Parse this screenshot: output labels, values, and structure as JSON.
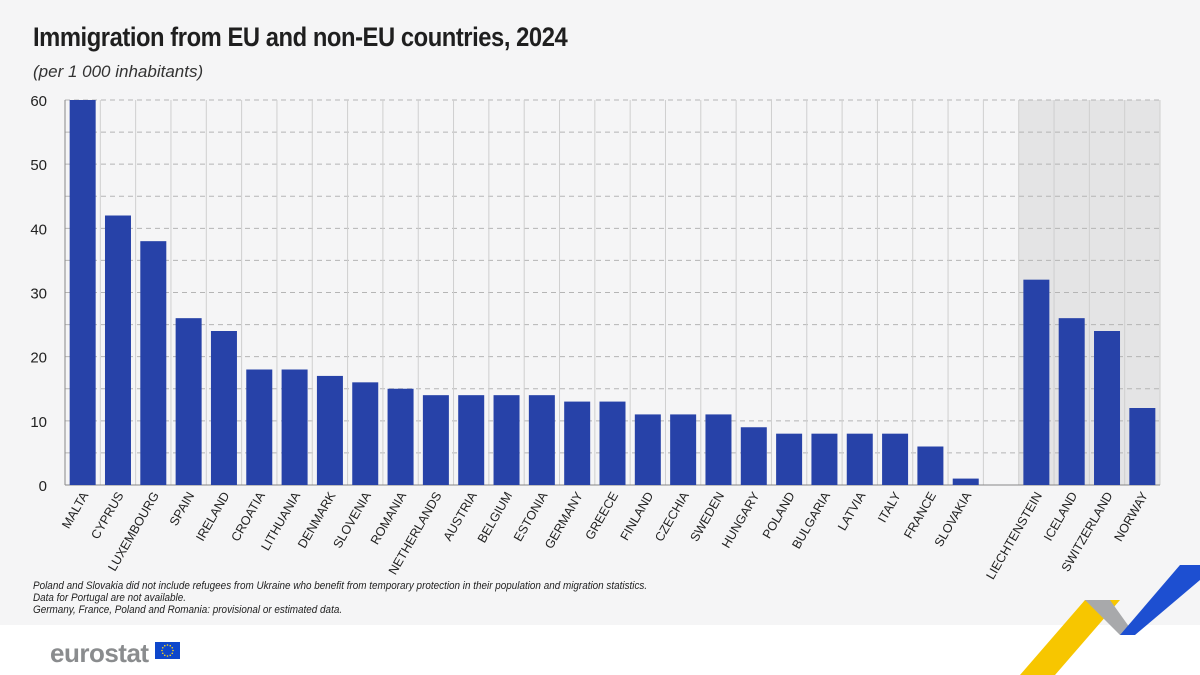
{
  "chart_data": {
    "type": "bar",
    "title": "Immigration from EU and non-EU countries, 2024",
    "subtitle": "(per 1 000 inhabitants)",
    "categories": [
      "MALTA",
      "CYPRUS",
      "LUXEMBOURG",
      "SPAIN",
      "IRELAND",
      "CROATIA",
      "LITHUANIA",
      "DENMARK",
      "SLOVENIA",
      "ROMANIA",
      "NETHERLANDS",
      "AUSTRIA",
      "BELGIUM",
      "ESTONIA",
      "GERMANY",
      "GREECE",
      "FINLAND",
      "CZECHIA",
      "SWEDEN",
      "HUNGARY",
      "POLAND",
      "BULGARIA",
      "LATVIA",
      "ITALY",
      "FRANCE",
      "SLOVAKIA",
      "",
      "LIECHTENSTEIN",
      "ICELAND",
      "SWITZERLAND",
      "NORWAY"
    ],
    "values": [
      60,
      42,
      38,
      26,
      24,
      18,
      18,
      17,
      16,
      15,
      14,
      14,
      14,
      14,
      13,
      13,
      11,
      11,
      11,
      9,
      8,
      8,
      8,
      8,
      6,
      1,
      null,
      32,
      26,
      24,
      12
    ],
    "non_eu_highlighted": [
      "LIECHTENSTEIN",
      "ICELAND",
      "SWITZERLAND",
      "NORWAY"
    ],
    "ylim": [
      0,
      60
    ],
    "yticks": [
      0,
      10,
      20,
      30,
      40,
      50,
      60
    ],
    "grid": true,
    "bar_color": "#2742a8",
    "highlight_bg": "#e4e4e5"
  },
  "notes": [
    "Poland and Slovakia did not include refugees from Ukraine who benefit from temporary protection in their population and migration statistics.",
    "Data for Portugal are not available.",
    "Germany, France, Poland and Romania: provisional or estimated data."
  ],
  "footer": {
    "logo": "eurostat"
  }
}
